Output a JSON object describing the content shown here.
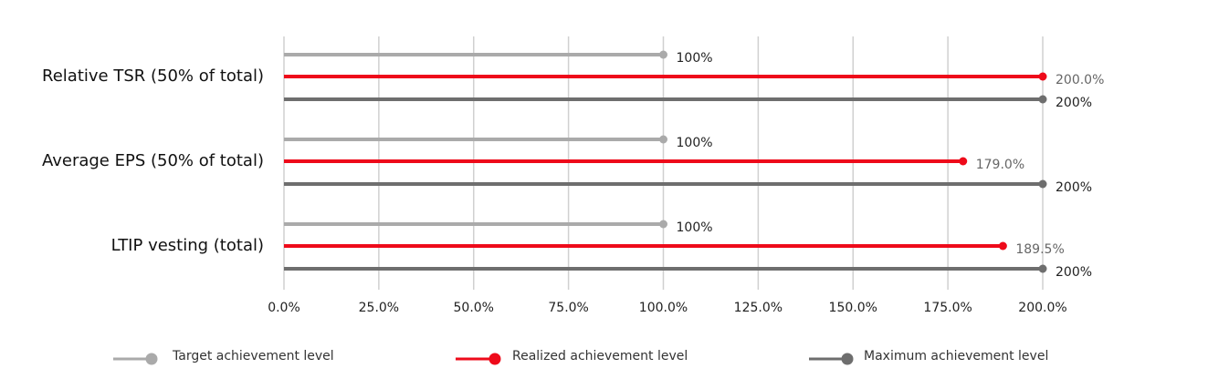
{
  "chart_data": {
    "type": "lollipop",
    "categories": [
      "Relative TSR (50% of total)",
      "Average EPS (50% of total)",
      "LTIP vesting (total)"
    ],
    "series": [
      {
        "name": "Target achievement level",
        "color": "#aaaaaa",
        "values": [
          100,
          100,
          100
        ],
        "value_labels": [
          "100%",
          "100%",
          "100%"
        ]
      },
      {
        "name": "Realized achievement level",
        "color": "#ee0a1a",
        "values": [
          200,
          179,
          189.5
        ],
        "value_labels": [
          "200.0%",
          "179.0%",
          "189.5%"
        ]
      },
      {
        "name": "Maximum achievement level",
        "color": "#6e6e6e",
        "values": [
          200,
          200,
          200
        ],
        "value_labels": [
          "200%",
          "200%",
          "200%"
        ]
      }
    ],
    "xlim": [
      0,
      200
    ],
    "xticks": [
      {
        "value": 0,
        "label": "0.0%"
      },
      {
        "value": 25,
        "label": "25.0%"
      },
      {
        "value": 50,
        "label": "50.0%"
      },
      {
        "value": 75,
        "label": "75.0%"
      },
      {
        "value": 100,
        "label": "100.0%"
      },
      {
        "value": 125,
        "label": "125.0%"
      },
      {
        "value": 150,
        "label": "150.0%"
      },
      {
        "value": 175,
        "label": "175.0%"
      },
      {
        "value": 200,
        "label": "200.0%"
      }
    ],
    "grid": true,
    "legend": "bottom"
  }
}
